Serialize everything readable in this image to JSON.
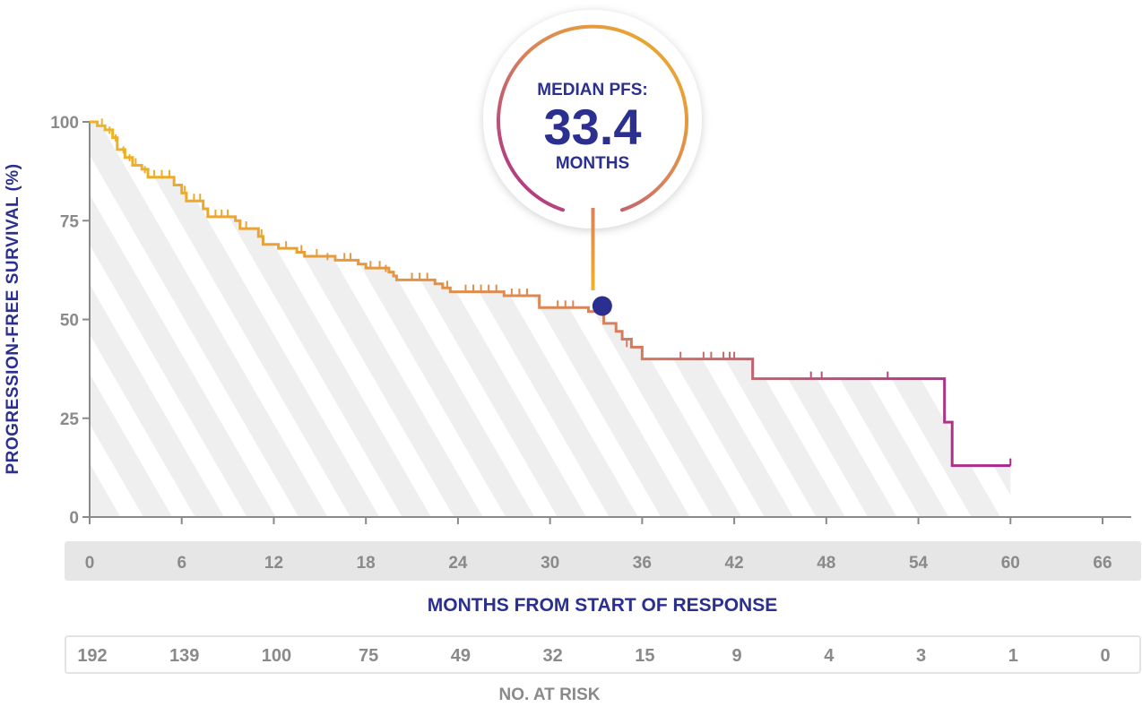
{
  "chart_data": {
    "type": "line",
    "subtype": "kaplan-meier",
    "ylabel": "PROGRESSION-FREE SURVIVAL (%)",
    "xlabel": "MONTHS FROM START OF RESPONSE",
    "xlim": [
      0,
      66
    ],
    "ylim": [
      0,
      100
    ],
    "x_ticks": [
      "0",
      "6",
      "12",
      "18",
      "24",
      "30",
      "36",
      "42",
      "48",
      "54",
      "60",
      "66"
    ],
    "y_ticks": [
      "0",
      "25",
      "50",
      "75",
      "100"
    ],
    "gradient_colors": [
      "#f0b323",
      "#d9825a",
      "#a6258f"
    ],
    "series": [
      {
        "name": "PFS",
        "steps": [
          [
            0,
            100
          ],
          [
            0.5,
            99
          ],
          [
            1.0,
            98
          ],
          [
            1.5,
            96
          ],
          [
            1.8,
            93
          ],
          [
            2.3,
            91
          ],
          [
            2.8,
            89
          ],
          [
            3.4,
            88
          ],
          [
            3.8,
            86
          ],
          [
            5.5,
            84
          ],
          [
            6.0,
            82
          ],
          [
            6.3,
            80
          ],
          [
            7.4,
            78
          ],
          [
            7.7,
            76
          ],
          [
            9.5,
            75
          ],
          [
            9.8,
            73
          ],
          [
            11.0,
            71
          ],
          [
            11.3,
            69
          ],
          [
            12.3,
            68
          ],
          [
            13.5,
            67
          ],
          [
            14.0,
            66
          ],
          [
            16.0,
            65
          ],
          [
            17.5,
            64
          ],
          [
            18.0,
            63
          ],
          [
            19.5,
            62
          ],
          [
            19.8,
            61
          ],
          [
            20.0,
            60
          ],
          [
            22.5,
            59
          ],
          [
            23.0,
            58
          ],
          [
            23.5,
            57
          ],
          [
            27.0,
            56
          ],
          [
            29.3,
            53
          ],
          [
            32.5,
            52
          ],
          [
            33.5,
            49
          ],
          [
            34.3,
            47
          ],
          [
            34.7,
            45
          ],
          [
            35.3,
            43
          ],
          [
            36.0,
            40
          ],
          [
            43.2,
            35
          ],
          [
            55.7,
            24
          ],
          [
            56.2,
            13
          ],
          [
            60.0,
            13
          ]
        ],
        "censored": [
          [
            0.8,
            99
          ],
          [
            1.3,
            97
          ],
          [
            1.7,
            95
          ],
          [
            2.2,
            92
          ],
          [
            2.6,
            90
          ],
          [
            3.0,
            89
          ],
          [
            3.6,
            87
          ],
          [
            4.2,
            86
          ],
          [
            4.7,
            86
          ],
          [
            5.2,
            86
          ],
          [
            6.2,
            82
          ],
          [
            6.8,
            80
          ],
          [
            7.2,
            80
          ],
          [
            8.2,
            76
          ],
          [
            8.6,
            76
          ],
          [
            9.0,
            76
          ],
          [
            10.2,
            73
          ],
          [
            11.2,
            71
          ],
          [
            12.8,
            68
          ],
          [
            13.8,
            67
          ],
          [
            14.8,
            66
          ],
          [
            15.5,
            65
          ],
          [
            16.6,
            65
          ],
          [
            17.0,
            65
          ],
          [
            18.3,
            63
          ],
          [
            18.9,
            63
          ],
          [
            19.3,
            62
          ],
          [
            21.0,
            60
          ],
          [
            21.5,
            60
          ],
          [
            22.0,
            60
          ],
          [
            23.3,
            58
          ],
          [
            24.5,
            57
          ],
          [
            25.0,
            57
          ],
          [
            25.5,
            57
          ],
          [
            26.0,
            57
          ],
          [
            26.5,
            57
          ],
          [
            27.5,
            56
          ],
          [
            28.0,
            56
          ],
          [
            28.5,
            56
          ],
          [
            30.5,
            53
          ],
          [
            31.0,
            53
          ],
          [
            31.5,
            53
          ],
          [
            35.0,
            43
          ],
          [
            38.5,
            40
          ],
          [
            40.0,
            40
          ],
          [
            40.5,
            40
          ],
          [
            41.3,
            40
          ],
          [
            41.7,
            40
          ],
          [
            42.0,
            40
          ],
          [
            47.0,
            35
          ],
          [
            47.7,
            35
          ],
          [
            52.0,
            35
          ],
          [
            60.0,
            13
          ]
        ]
      }
    ],
    "median_marker": {
      "x": 33.4,
      "y": 50
    },
    "annotation": {
      "line1": "MEDIAN PFS:",
      "value": "33.4",
      "line3": "MONTHS"
    },
    "at_risk": {
      "title": "NO. AT RISK",
      "values": [
        "192",
        "139",
        "100",
        "75",
        "49",
        "32",
        "15",
        "9",
        "4",
        "3",
        "1",
        "0"
      ]
    }
  }
}
